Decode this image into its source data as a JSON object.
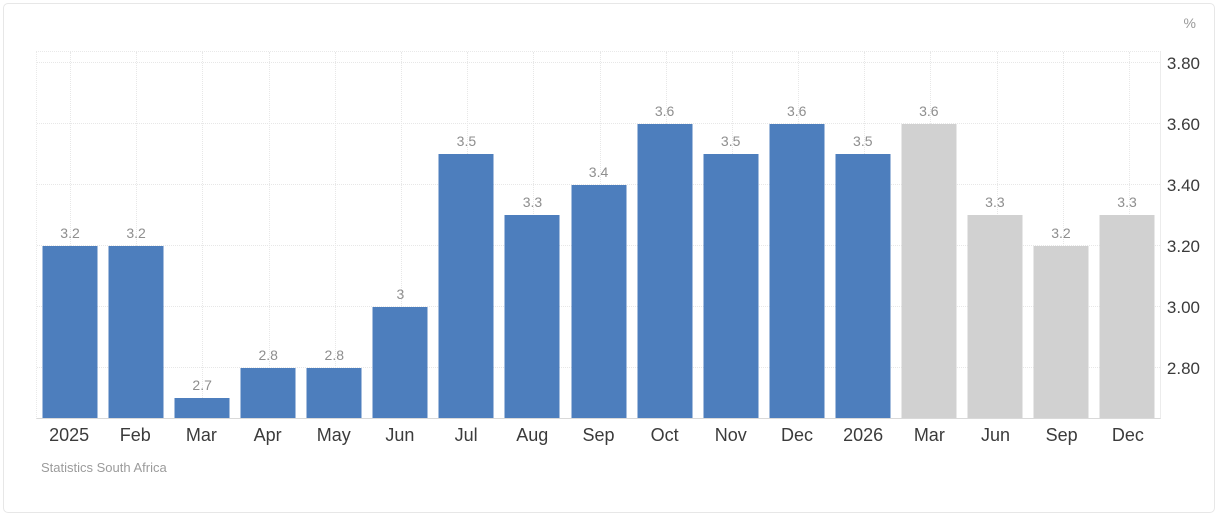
{
  "chart_data": {
    "type": "bar",
    "title": "",
    "unit_label": "%",
    "source": "Statistics South Africa",
    "categories": [
      "2025",
      "Feb",
      "Mar",
      "Apr",
      "May",
      "Jun",
      "Jul",
      "Aug",
      "Sep",
      "Oct",
      "Nov",
      "Dec",
      "2026",
      "Mar",
      "Jun",
      "Sep",
      "Dec"
    ],
    "values": [
      3.2,
      3.2,
      2.7,
      2.8,
      2.8,
      3,
      3.5,
      3.3,
      3.4,
      3.6,
      3.5,
      3.6,
      3.5,
      3.6,
      3.3,
      3.2,
      3.3
    ],
    "value_labels": [
      "3.2",
      "3.2",
      "2.7",
      "2.8",
      "2.8",
      "3",
      "3.5",
      "3.3",
      "3.4",
      "3.6",
      "3.5",
      "3.6",
      "3.5",
      "3.6",
      "3.3",
      "3.2",
      "3.3"
    ],
    "bar_kinds": [
      "actual",
      "actual",
      "actual",
      "actual",
      "actual",
      "actual",
      "actual",
      "actual",
      "actual",
      "actual",
      "actual",
      "actual",
      "actual",
      "forecast",
      "forecast",
      "forecast",
      "forecast"
    ],
    "y_ticks": [
      {
        "label": "3.80",
        "value": 3.8
      },
      {
        "label": "3.60",
        "value": 3.6
      },
      {
        "label": "3.40",
        "value": 3.4
      },
      {
        "label": "3.20",
        "value": 3.2
      },
      {
        "label": "3.00",
        "value": 3.0
      },
      {
        "label": "2.80",
        "value": 2.8
      }
    ],
    "ylim": [
      2.635,
      3.842
    ],
    "grid": true,
    "legend_position": "none",
    "colors": {
      "actual_bar": "#4d7ebd",
      "forecast_bar": "#d1d1d1",
      "grid_line": "#e7e7e7",
      "axis_text": "#3b3b3b",
      "value_label_text": "#8e8e8e",
      "source_text": "#9b9b9b",
      "unit_text": "#999999"
    }
  }
}
